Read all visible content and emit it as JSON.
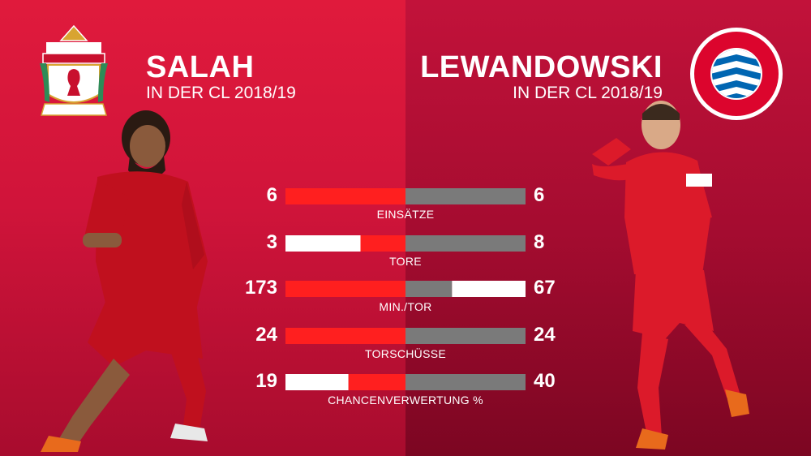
{
  "left_player": {
    "name": "SALAH",
    "subtitle": "IN DER CL 2018/19",
    "club_crest": "liverpool-crest"
  },
  "right_player": {
    "name": "LEWANDOWSKI",
    "subtitle": "IN DER CL 2018/19",
    "club_crest": "bayern-crest"
  },
  "colors": {
    "left_bar": "#ff1f1f",
    "right_bar": "#7a7a7a",
    "bar_remainder": "#ffffff",
    "left_bg": "#e01a3c",
    "right_bg": "#a50c30"
  },
  "chart_data": {
    "type": "bar",
    "categories": [
      "EINSÄTZE",
      "TORE",
      "MIN./TOR",
      "TORSCHÜSSE",
      "CHANCENVERWERTUNG %"
    ],
    "series": [
      {
        "name": "SALAH",
        "values": [
          6,
          3,
          173,
          24,
          19
        ]
      },
      {
        "name": "LEWANDOWSKI",
        "values": [
          6,
          8,
          67,
          24,
          40
        ]
      }
    ],
    "value_labels_left": [
      "6",
      "3",
      "173",
      "24",
      "19"
    ],
    "value_labels_right": [
      "6",
      "8",
      "67",
      "24",
      "40"
    ]
  }
}
